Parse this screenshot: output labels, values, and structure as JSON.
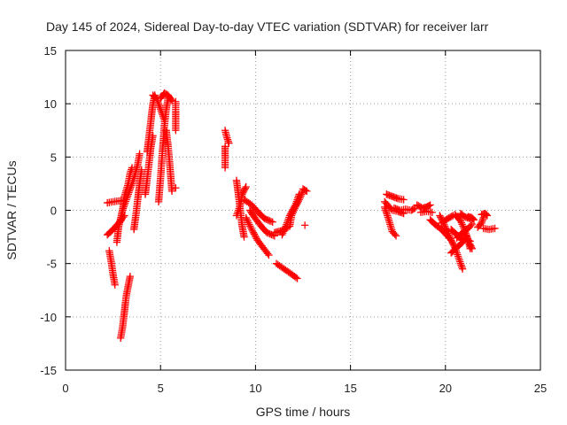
{
  "chart_data": {
    "type": "scatter",
    "title": "Day 145 of 2024, Sidereal Day-to-day VTEC variation (SDTVAR) for receiver larr",
    "xlabel": "GPS time / hours",
    "ylabel": "SDTVAR / TECUs",
    "xlim": [
      0,
      25
    ],
    "ylim": [
      -15,
      15
    ],
    "xticks": [
      "0",
      "5",
      "10",
      "15",
      "20",
      "25"
    ],
    "yticks": [
      "-15",
      "-10",
      "-5",
      "0",
      "5",
      "10",
      "15"
    ],
    "grid": true,
    "marker": "plus",
    "color": "#ff0000",
    "segments": [
      [
        [
          2.2,
          0.7
        ],
        [
          2.5,
          0.8
        ],
        [
          2.9,
          0.9
        ]
      ],
      [
        [
          2.2,
          -2.3
        ],
        [
          2.5,
          -1.8
        ],
        [
          2.8,
          -1.2
        ],
        [
          3.1,
          -0.5
        ]
      ],
      [
        [
          2.9,
          -1.0
        ],
        [
          3.0,
          0.0
        ],
        [
          3.2,
          1.0
        ],
        [
          3.4,
          2.0
        ],
        [
          3.6,
          3.0
        ],
        [
          3.8,
          4.3
        ],
        [
          3.9,
          5.3
        ]
      ],
      [
        [
          2.7,
          -3.0
        ],
        [
          2.8,
          -1.5
        ],
        [
          3.0,
          0.0
        ],
        [
          3.1,
          1.3
        ],
        [
          3.3,
          2.5
        ],
        [
          3.4,
          3.5
        ],
        [
          3.5,
          4.0
        ]
      ],
      [
        [
          2.3,
          -3.8
        ],
        [
          2.4,
          -4.8
        ],
        [
          2.5,
          -6.0
        ],
        [
          2.6,
          -7.0
        ]
      ],
      [
        [
          2.9,
          -12.0
        ],
        [
          3.0,
          -11.0
        ],
        [
          3.1,
          -9.5
        ],
        [
          3.2,
          -8.0
        ],
        [
          3.4,
          -6.2
        ]
      ],
      [
        [
          3.6,
          -1.8
        ],
        [
          3.7,
          -0.5
        ],
        [
          3.8,
          1.0
        ],
        [
          3.9,
          2.5
        ],
        [
          4.0,
          3.8
        ]
      ],
      [
        [
          4.3,
          5.5
        ],
        [
          4.4,
          7.0
        ],
        [
          4.5,
          8.5
        ],
        [
          4.6,
          10.0
        ],
        [
          4.7,
          10.8
        ]
      ],
      [
        [
          4.2,
          1.5
        ],
        [
          4.3,
          3.0
        ],
        [
          4.4,
          4.5
        ],
        [
          4.5,
          6.0
        ],
        [
          4.6,
          7.0
        ]
      ],
      [
        [
          4.6,
          10.8
        ],
        [
          4.8,
          10.5
        ],
        [
          5.0,
          9.5
        ],
        [
          5.2,
          8.5
        ]
      ],
      [
        [
          4.9,
          0.8
        ],
        [
          5.0,
          3.0
        ],
        [
          5.1,
          5.5
        ],
        [
          5.2,
          7.8
        ],
        [
          5.3,
          9.5
        ],
        [
          5.4,
          10.5
        ]
      ],
      [
        [
          5.0,
          10.5
        ],
        [
          5.2,
          11.0
        ],
        [
          5.4,
          10.8
        ],
        [
          5.6,
          10.3
        ]
      ],
      [
        [
          5.3,
          7.5
        ],
        [
          5.4,
          6.0
        ],
        [
          5.5,
          4.0
        ],
        [
          5.6,
          1.8
        ]
      ],
      [
        [
          5.8,
          10.2
        ],
        [
          5.8,
          9.3
        ],
        [
          5.8,
          8.5
        ],
        [
          5.8,
          7.5
        ]
      ],
      [
        [
          5.8,
          2.1
        ]
      ],
      [
        [
          8.4,
          7.5
        ],
        [
          8.5,
          6.8
        ],
        [
          8.6,
          6.3
        ]
      ],
      [
        [
          8.4,
          6.0
        ],
        [
          8.4,
          5.0
        ],
        [
          8.4,
          4.0
        ]
      ],
      [
        [
          9.0,
          2.8
        ],
        [
          9.1,
          1.5
        ],
        [
          9.2,
          0.0
        ],
        [
          9.3,
          -1.5
        ],
        [
          9.4,
          -2.5
        ]
      ],
      [
        [
          9.0,
          -0.5
        ],
        [
          9.2,
          0.5
        ],
        [
          9.3,
          1.5
        ],
        [
          9.5,
          2.2
        ]
      ],
      [
        [
          9.4,
          1.0
        ],
        [
          9.8,
          0.5
        ],
        [
          10.2,
          -0.3
        ],
        [
          10.5,
          -0.8
        ],
        [
          10.9,
          -1.1
        ]
      ],
      [
        [
          9.7,
          0.0
        ],
        [
          10.0,
          -0.8
        ],
        [
          10.3,
          -1.5
        ],
        [
          10.6,
          -2.1
        ],
        [
          11.0,
          -2.4
        ]
      ],
      [
        [
          9.5,
          -0.7
        ],
        [
          9.8,
          -1.8
        ],
        [
          10.1,
          -2.8
        ],
        [
          10.4,
          -3.5
        ],
        [
          10.7,
          -4.2
        ]
      ],
      [
        [
          11.1,
          -5.0
        ],
        [
          11.5,
          -5.5
        ],
        [
          11.9,
          -6.0
        ],
        [
          12.2,
          -6.4
        ]
      ],
      [
        [
          11.0,
          -2.1
        ],
        [
          11.4,
          -1.9
        ],
        [
          11.7,
          -1.6
        ]
      ],
      [
        [
          11.4,
          -2.3
        ],
        [
          11.6,
          -1.5
        ],
        [
          11.8,
          -0.5
        ],
        [
          12.1,
          0.5
        ],
        [
          12.3,
          1.5
        ]
      ],
      [
        [
          11.8,
          -1.5
        ],
        [
          11.9,
          -0.5
        ],
        [
          12.1,
          0.3
        ],
        [
          12.3,
          1.0
        ],
        [
          12.5,
          1.8
        ]
      ],
      [
        [
          12.5,
          2.0
        ],
        [
          12.7,
          1.8
        ]
      ],
      [
        [
          12.6,
          -1.4
        ]
      ],
      [
        [
          16.8,
          0.3
        ],
        [
          17.0,
          -0.8
        ],
        [
          17.2,
          -2.0
        ],
        [
          17.4,
          -2.4
        ]
      ],
      [
        [
          16.8,
          0.8
        ],
        [
          17.2,
          0.0
        ],
        [
          17.5,
          -0.1
        ],
        [
          17.8,
          -0.3
        ]
      ],
      [
        [
          16.9,
          1.5
        ],
        [
          17.2,
          1.3
        ],
        [
          17.5,
          1.1
        ],
        [
          17.8,
          1.0
        ]
      ],
      [
        [
          17.3,
          0.2
        ],
        [
          17.6,
          0.0
        ],
        [
          17.9,
          0.1
        ],
        [
          18.2,
          0.0
        ],
        [
          18.4,
          0.2
        ]
      ],
      [
        [
          18.5,
          0.5
        ],
        [
          18.8,
          0.2
        ],
        [
          19.0,
          0.3
        ],
        [
          19.2,
          0.5
        ]
      ],
      [
        [
          18.7,
          -0.2
        ],
        [
          19.0,
          -0.1
        ],
        [
          19.3,
          -0.2
        ]
      ],
      [
        [
          19.2,
          -0.9
        ],
        [
          19.5,
          -1.4
        ],
        [
          19.8,
          -1.8
        ],
        [
          20.1,
          -2.4
        ],
        [
          20.3,
          -2.8
        ]
      ],
      [
        [
          19.7,
          -0.5
        ],
        [
          19.9,
          -1.2
        ],
        [
          20.1,
          -2.0
        ],
        [
          20.3,
          -2.8
        ],
        [
          20.5,
          -3.5
        ],
        [
          20.7,
          -4.5
        ],
        [
          20.9,
          -5.5
        ]
      ],
      [
        [
          19.8,
          -1.2
        ],
        [
          20.1,
          -0.8
        ],
        [
          20.4,
          -0.5
        ]
      ],
      [
        [
          20.5,
          -0.4
        ],
        [
          20.8,
          -1.0
        ],
        [
          21.0,
          -1.8
        ],
        [
          21.2,
          -2.8
        ],
        [
          21.3,
          -3.6
        ]
      ],
      [
        [
          20.3,
          -4.0
        ],
        [
          20.6,
          -3.5
        ],
        [
          20.9,
          -3.0
        ],
        [
          21.1,
          -2.4
        ]
      ],
      [
        [
          20.6,
          -2.6
        ],
        [
          20.9,
          -2.1
        ],
        [
          21.2,
          -1.7
        ],
        [
          21.4,
          -1.3
        ]
      ],
      [
        [
          20.3,
          -1.8
        ],
        [
          20.6,
          -2.3
        ],
        [
          20.9,
          -2.8
        ]
      ],
      [
        [
          20.8,
          -0.3
        ],
        [
          21.0,
          -0.6
        ],
        [
          21.3,
          -0.8
        ]
      ],
      [
        [
          21.2,
          -0.6
        ],
        [
          21.4,
          -0.7
        ],
        [
          21.5,
          -0.9
        ]
      ],
      [
        [
          21.0,
          -2.6
        ],
        [
          21.3,
          -2.9
        ]
      ],
      [
        [
          21.3,
          -3.2
        ],
        [
          21.4,
          -3.6
        ]
      ],
      [
        [
          21.9,
          -0.4
        ],
        [
          22.1,
          -0.3
        ],
        [
          22.2,
          -0.5
        ]
      ],
      [
        [
          21.7,
          -1.6
        ],
        [
          21.9,
          -1.2
        ],
        [
          22.0,
          -0.7
        ]
      ],
      [
        [
          22.0,
          -1.7
        ],
        [
          22.3,
          -1.8
        ],
        [
          22.6,
          -1.7
        ]
      ]
    ]
  }
}
